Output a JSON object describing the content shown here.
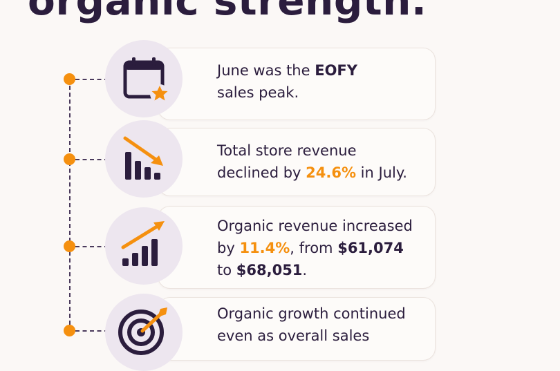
{
  "headline": "organic strength.",
  "colors": {
    "accent": "#f5900f",
    "ink": "#2b1d3d",
    "circle": "#ede6ef"
  },
  "items": [
    {
      "icon": "calendar-star-icon",
      "l1a": "June was the ",
      "l1b": "EOFY",
      "l2": "sales peak."
    },
    {
      "icon": "declining-bar-chart-icon",
      "l1": "Total store revenue",
      "l2a": "declined by ",
      "l2b": "24.6%",
      "l2c": " in July."
    },
    {
      "icon": "growth-bar-chart-icon",
      "l1": "Organic revenue increased",
      "l2a": "by ",
      "l2b": "11.4%",
      "l2c": ", from ",
      "l2d": "$61,074",
      "l3a": "to ",
      "l3b": "$68,051",
      "l3c": "."
    },
    {
      "icon": "target-arrow-icon",
      "l1": "Organic growth continued",
      "l2": "even as overall sales"
    }
  ]
}
